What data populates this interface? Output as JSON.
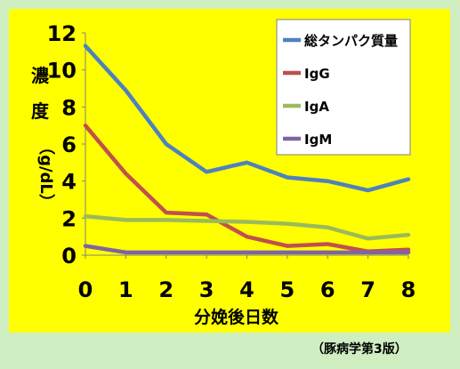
{
  "source_note": "（豚病学第3版）",
  "ylabel_chars": [
    "濃",
    "度"
  ],
  "ylabel_unit": "（g/dL）",
  "chart_data": {
    "type": "line",
    "title": "",
    "xlabel": "分娩後日数",
    "ylabel": "濃度（g/dL）",
    "x": [
      0,
      1,
      2,
      3,
      4,
      5,
      6,
      7,
      8
    ],
    "xlim": [
      0,
      8
    ],
    "ylim": [
      0,
      12
    ],
    "yticks": [
      0,
      2,
      4,
      6,
      8,
      10,
      12
    ],
    "grid": false,
    "legend": "top-right",
    "series": [
      {
        "name": "総タンパク質量",
        "color": "#4f81bd",
        "values": [
          11.3,
          8.9,
          6.0,
          4.5,
          5.0,
          4.2,
          4.0,
          3.5,
          4.1
        ]
      },
      {
        "name": "IgG",
        "color": "#c0504d",
        "values": [
          7.0,
          4.4,
          2.3,
          2.2,
          1.0,
          0.5,
          0.6,
          0.2,
          0.3
        ]
      },
      {
        "name": "IgA",
        "color": "#9bbb59",
        "values": [
          2.1,
          1.9,
          1.9,
          1.85,
          1.8,
          1.7,
          1.5,
          0.9,
          1.1
        ]
      },
      {
        "name": "IgM",
        "color": "#8064a2",
        "values": [
          0.5,
          0.15,
          0.15,
          0.15,
          0.15,
          0.15,
          0.15,
          0.15,
          0.15
        ]
      }
    ]
  }
}
